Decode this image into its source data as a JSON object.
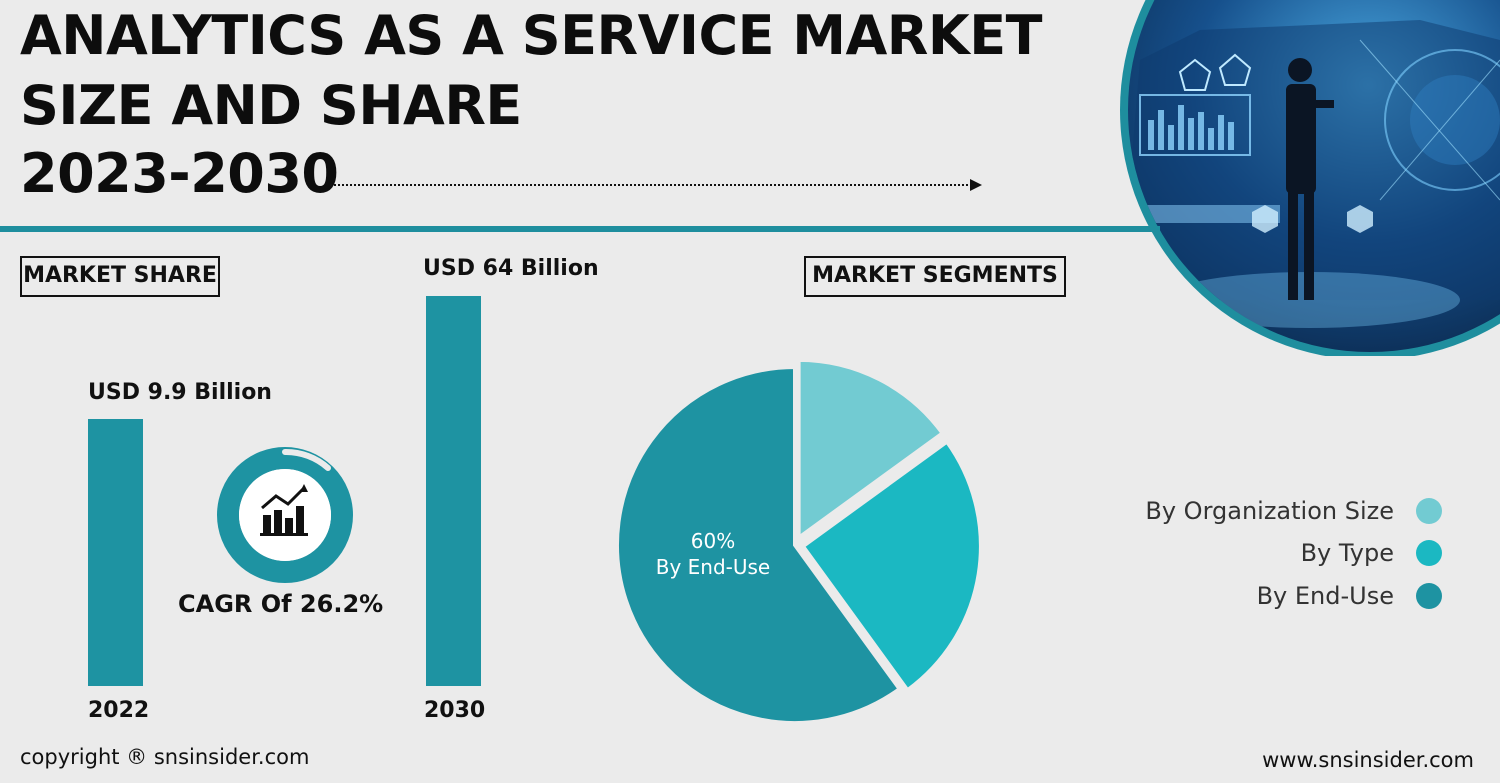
{
  "title": {
    "line1": "ANALYTICS AS A SERVICE MARKET",
    "line2": "SIZE AND SHARE",
    "line3": "2023-2030"
  },
  "market_share_label": "MARKET SHARE",
  "market_segments_label": "MARKET SEGMENTS",
  "cagr": "CAGR Of 26.2%",
  "pie_center": {
    "percent": "60%",
    "label": "By End-Use"
  },
  "footer": {
    "copyright": "copyright ® snsinsider.com",
    "website": "www.snsinsider.com"
  },
  "icons": {
    "gauge": "bar-chart-trend-icon",
    "hero": "businessman-hologram-illustration"
  },
  "colors": {
    "accent": "#1e93a2",
    "org_size": "#72cbd2",
    "type": "#1bb8c2",
    "end_use": "#1e93a2",
    "background": "#ebebeb"
  },
  "chart_data": [
    {
      "type": "bar",
      "categories": [
        "2022",
        "2030"
      ],
      "values": [
        9.9,
        64
      ],
      "value_labels": [
        "USD 9.9 Billion",
        "USD 64 Billion"
      ],
      "ylim": [
        0,
        64
      ]
    },
    {
      "type": "pie",
      "labels": [
        "By Organization Size",
        "By Type",
        "By End-Use"
      ],
      "values": [
        15,
        25,
        60
      ],
      "colors": [
        "#72cbd2",
        "#1bb8c2",
        "#1e93a2"
      ],
      "legend": "right"
    }
  ]
}
